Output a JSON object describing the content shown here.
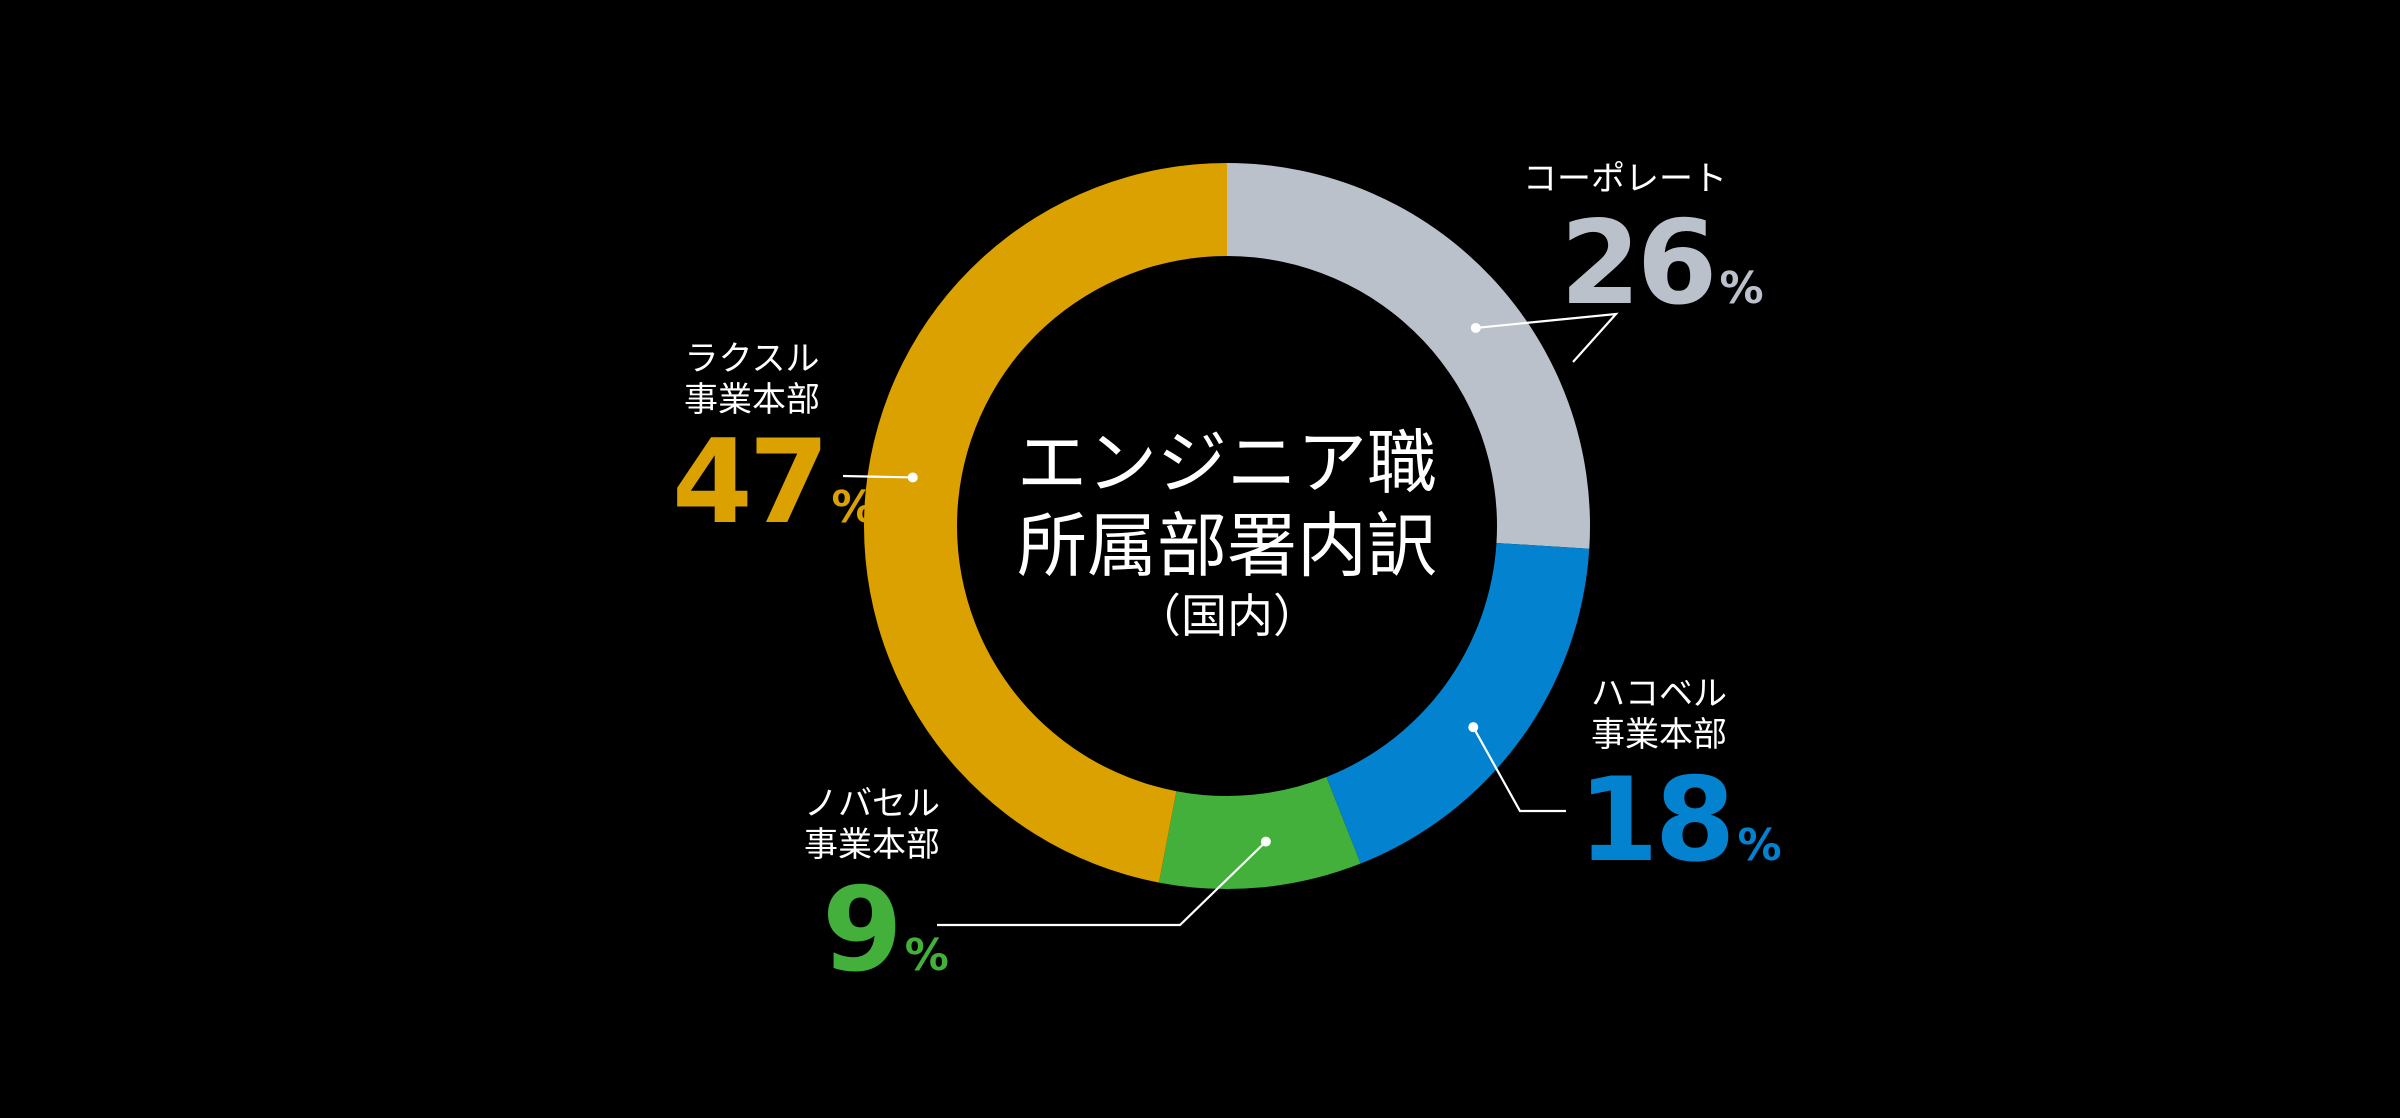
{
  "chart_data": {
    "type": "pie",
    "donut": true,
    "title": [
      "エンジニア職",
      "所属部署内訳"
    ],
    "subtitle": "（国内）",
    "unit": "%",
    "start": "top",
    "direction": "clockwise",
    "series": [
      {
        "name": "コーポレート",
        "value": 26,
        "value_label": "26",
        "color": "#BBC1CB"
      },
      {
        "name": "ハコベル\n事業本部",
        "value": 18,
        "value_label": "18",
        "color": "#0282CF"
      },
      {
        "name": "ノバセル\n事業本部",
        "value": 9,
        "value_label": "9",
        "color": "#42B03B"
      },
      {
        "name": "ラクスル\n事業本部",
        "value": 47,
        "value_label": "47",
        "color": "#DBA100"
      }
    ]
  }
}
